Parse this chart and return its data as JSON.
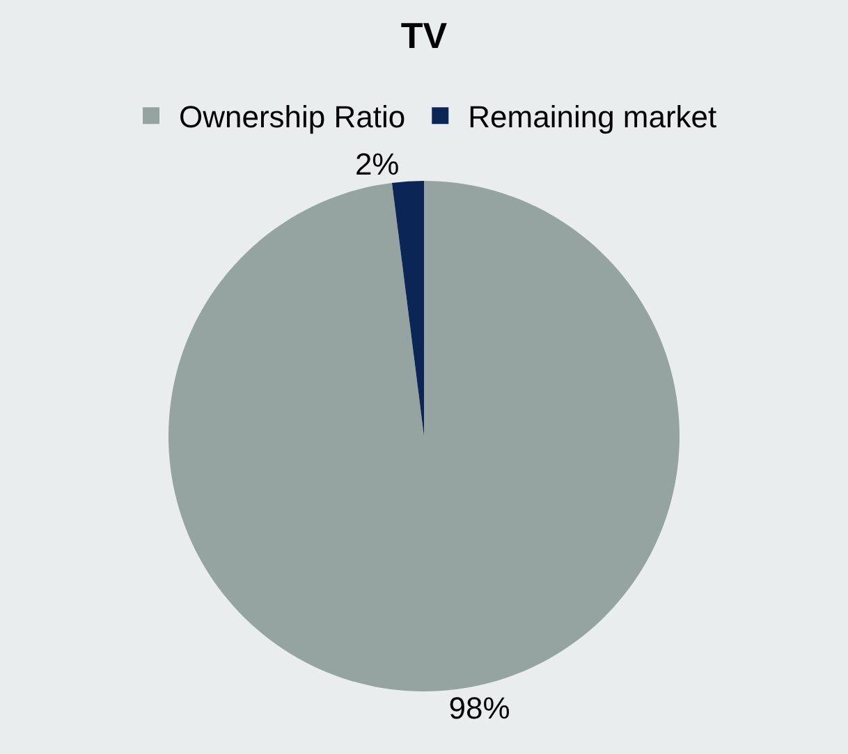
{
  "chart_data": {
    "type": "pie",
    "title": "TV",
    "categories": [
      "Ownership Ratio",
      "Remaining market"
    ],
    "values": [
      98,
      2
    ],
    "colors": [
      "#95a3a1",
      "#0c2557"
    ],
    "value_labels": [
      "98%",
      "2%"
    ],
    "legend": "top"
  }
}
